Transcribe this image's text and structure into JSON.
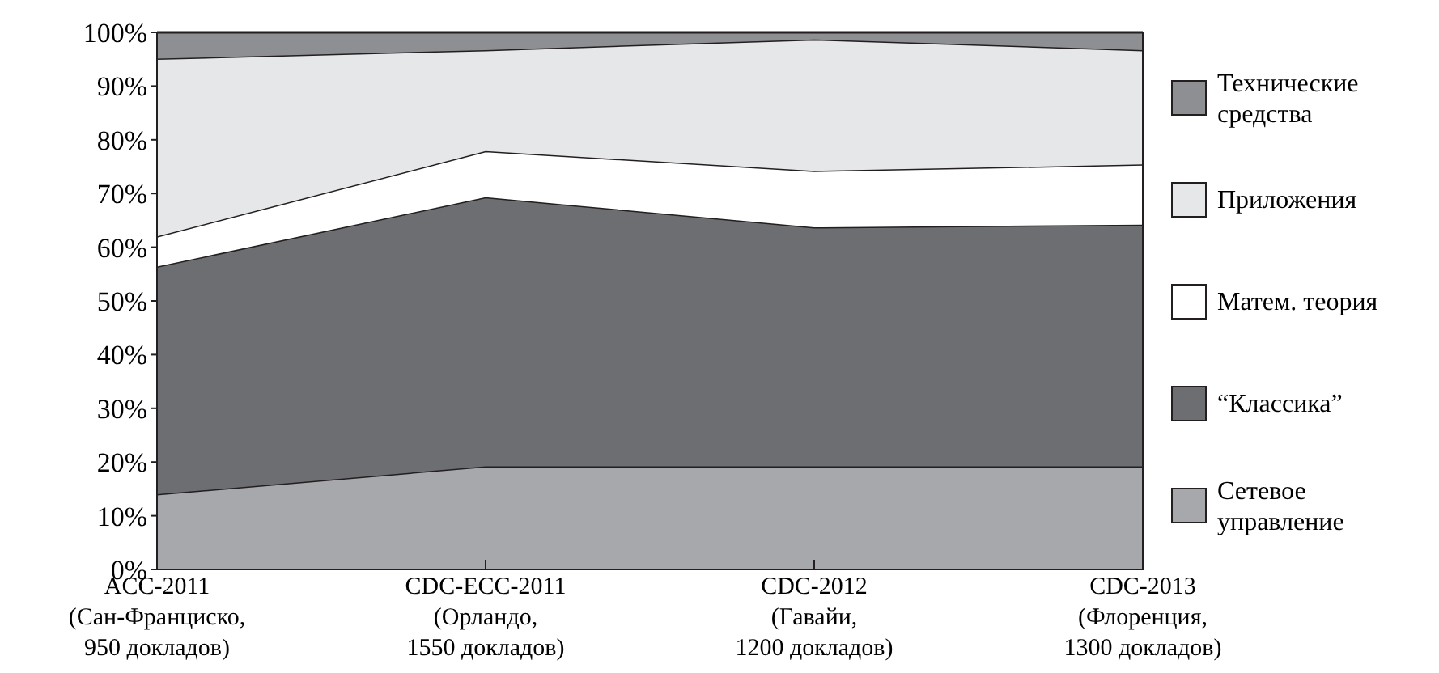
{
  "chart_data": {
    "type": "area",
    "stacked": true,
    "categories": [
      "ACC-2011\n(Сан-Франциско,\n950 докладов)",
      "CDC-ECC-2011\n(Орландо,\n1550 докладов)",
      "CDC-2012\n(Гавайи,\n1200 докладов)",
      "CDC-2013\n(Флоренция,\n1300 докладов)"
    ],
    "series": [
      {
        "name": "Сетевое управление",
        "color": "#a7a8ab",
        "values": [
          14,
          19.2,
          19.2,
          19.2
        ]
      },
      {
        "name": "“Классика”",
        "color": "#6d6e71",
        "values": [
          42.4,
          50.1,
          44.5,
          45
        ]
      },
      {
        "name": "Матем. теория",
        "color": "#ffffff",
        "values": [
          5.6,
          8.6,
          10.5,
          11.2
        ]
      },
      {
        "name": "Приложения",
        "color": "#e6e7e9",
        "values": [
          33.1,
          18.8,
          24.5,
          21.3
        ]
      },
      {
        "name": "Технические средства",
        "color": "#8e8f93",
        "values": [
          4.9,
          3.3,
          1.3,
          3.3
        ]
      }
    ],
    "ylim": [
      0,
      100
    ],
    "yticks": [
      {
        "value": 0,
        "label": "0%"
      },
      {
        "value": 10,
        "label": "10%"
      },
      {
        "value": 20,
        "label": "20%"
      },
      {
        "value": 30,
        "label": "30%"
      },
      {
        "value": 40,
        "label": "40%"
      },
      {
        "value": 50,
        "label": "50%"
      },
      {
        "value": 60,
        "label": "60%"
      },
      {
        "value": 70,
        "label": "70%"
      },
      {
        "value": 80,
        "label": "80%"
      },
      {
        "value": 90,
        "label": "90%"
      },
      {
        "value": 100,
        "label": "100%"
      }
    ],
    "legend": "right"
  }
}
